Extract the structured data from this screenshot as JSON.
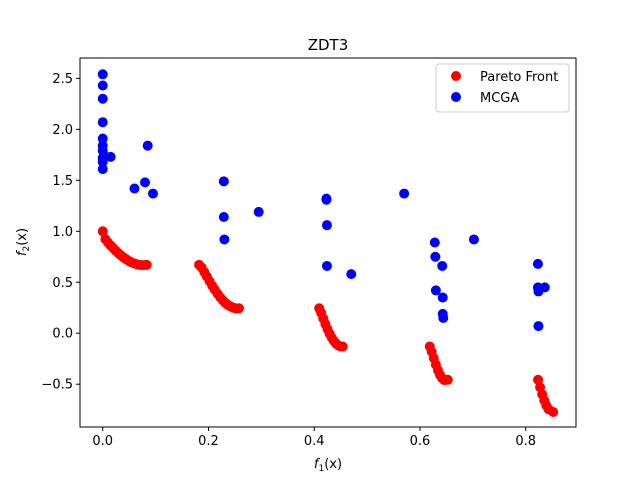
{
  "chart_data": {
    "type": "scatter",
    "title": "ZDT3",
    "xlabel": "f_1(x)",
    "ylabel": "f_2(x)",
    "xlim": [
      -0.043,
      0.895
    ],
    "ylim": [
      -0.92,
      2.7
    ],
    "xticks": [
      0.0,
      0.2,
      0.4,
      0.6,
      0.8
    ],
    "xtick_labels": [
      "0.0",
      "0.2",
      "0.4",
      "0.6",
      "0.8"
    ],
    "yticks": [
      -0.5,
      0.0,
      0.5,
      1.0,
      1.5,
      2.0,
      2.5
    ],
    "ytick_labels": [
      "−0.5",
      "0.0",
      "0.5",
      "1.0",
      "1.5",
      "2.0",
      "2.5"
    ],
    "grid": false,
    "legend_position": "upper right",
    "series": [
      {
        "name": "Pareto Front",
        "color": "#ff0000",
        "x": [
          0.0,
          0.005,
          0.01,
          0.015,
          0.02,
          0.025,
          0.03,
          0.035,
          0.04,
          0.045,
          0.05,
          0.055,
          0.06,
          0.065,
          0.07,
          0.075,
          0.08,
          0.0832,
          0.1822,
          0.187,
          0.192,
          0.197,
          0.202,
          0.207,
          0.212,
          0.217,
          0.222,
          0.227,
          0.232,
          0.237,
          0.242,
          0.247,
          0.252,
          0.2577,
          0.4093,
          0.413,
          0.417,
          0.421,
          0.425,
          0.429,
          0.433,
          0.437,
          0.441,
          0.445,
          0.449,
          0.4538,
          0.6184,
          0.622,
          0.626,
          0.63,
          0.634,
          0.638,
          0.642,
          0.646,
          0.6524,
          0.8233,
          0.827,
          0.831,
          0.835,
          0.839,
          0.843,
          0.8518
        ],
        "y": [
          1.0,
          0.924,
          0.889,
          0.86,
          0.833,
          0.807,
          0.783,
          0.761,
          0.741,
          0.723,
          0.707,
          0.694,
          0.684,
          0.676,
          0.671,
          0.668,
          0.669,
          0.671,
          0.671,
          0.645,
          0.6,
          0.555,
          0.51,
          0.466,
          0.425,
          0.387,
          0.353,
          0.323,
          0.297,
          0.277,
          0.261,
          0.25,
          0.244,
          0.245,
          0.245,
          0.2,
          0.145,
          0.09,
          0.04,
          -0.005,
          -0.043,
          -0.075,
          -0.1,
          -0.118,
          -0.128,
          -0.13,
          -0.13,
          -0.18,
          -0.245,
          -0.308,
          -0.365,
          -0.411,
          -0.443,
          -0.46,
          -0.457,
          -0.457,
          -0.53,
          -0.6,
          -0.66,
          -0.71,
          -0.745,
          -0.773
        ]
      },
      {
        "name": "MCGA",
        "color": "#0000ff",
        "x": [
          0.0,
          0.0,
          0.0,
          0.0,
          0.0,
          0.0,
          0.0,
          0.0,
          0.0,
          0.0,
          0.003,
          0.015,
          0.06,
          0.08,
          0.085,
          0.095,
          0.229,
          0.229,
          0.23,
          0.295,
          0.423,
          0.423,
          0.424,
          0.424,
          0.47,
          0.57,
          0.628,
          0.629,
          0.63,
          0.642,
          0.643,
          0.643,
          0.644,
          0.702,
          0.823,
          0.823,
          0.824,
          0.824,
          0.836
        ],
        "y": [
          2.54,
          2.43,
          2.3,
          2.07,
          1.91,
          1.84,
          1.79,
          1.72,
          1.68,
          1.61,
          1.74,
          1.73,
          1.42,
          1.48,
          1.84,
          1.37,
          1.49,
          1.14,
          0.92,
          1.19,
          1.32,
          1.31,
          1.06,
          0.66,
          0.58,
          1.37,
          0.89,
          0.75,
          0.42,
          0.66,
          0.35,
          0.19,
          0.15,
          0.92,
          0.68,
          0.45,
          0.41,
          0.07,
          0.45
        ]
      }
    ]
  }
}
